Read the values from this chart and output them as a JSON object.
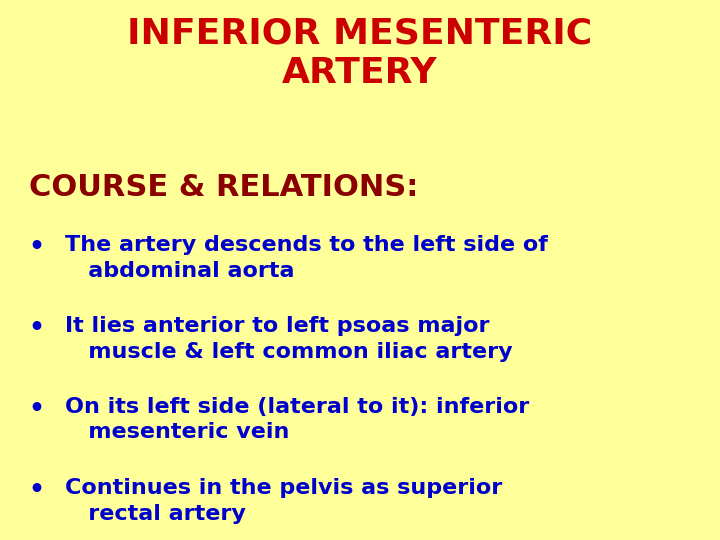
{
  "background_color": "#FFFF99",
  "title_line1": "INFERIOR MESENTERIC",
  "title_line2": "ARTERY",
  "title_color": "#CC0000",
  "title_fontsize": 26,
  "subtitle": "COURSE & RELATIONS:",
  "subtitle_color": "#8B0000",
  "subtitle_fontsize": 22,
  "bullet_color": "#0000CC",
  "bullet_fontsize": 16,
  "bullets": [
    "The artery descends to the left side of\n   abdominal aorta",
    "It lies anterior to left psoas major\n   muscle & left common iliac artery",
    "On its left side (lateral to it): inferior\n   mesenteric vein",
    "Continues in the pelvis as superior\n   rectal artery"
  ]
}
